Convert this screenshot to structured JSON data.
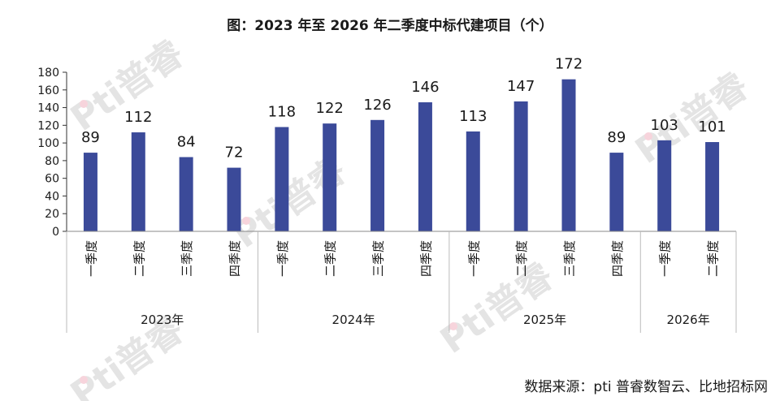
{
  "chart_data": {
    "type": "bar",
    "title": "图：2023 年至 2026 年二季度中标代建项目（个）",
    "categories": [
      "一季度",
      "二季度",
      "三季度",
      "四季度",
      "一季度",
      "二季度",
      "三季度",
      "四季度",
      "一季度",
      "二季度",
      "三季度",
      "四季度",
      "一季度",
      "二季度"
    ],
    "groups": [
      {
        "label": "2023年",
        "count": 4
      },
      {
        "label": "2024年",
        "count": 4
      },
      {
        "label": "2025年",
        "count": 4
      },
      {
        "label": "2026年",
        "count": 2
      }
    ],
    "values": [
      89,
      112,
      84,
      72,
      118,
      122,
      126,
      146,
      113,
      147,
      172,
      89,
      103,
      101
    ],
    "ylim": [
      0,
      180
    ],
    "yticks": [
      0,
      20,
      40,
      60,
      80,
      100,
      120,
      140,
      160,
      180
    ],
    "bar_color": "#3b4a99",
    "grid": false,
    "legend": "none"
  },
  "source": "数据来源：pti 普睿数智云、比地招标网",
  "watermark": "Pti普睿"
}
